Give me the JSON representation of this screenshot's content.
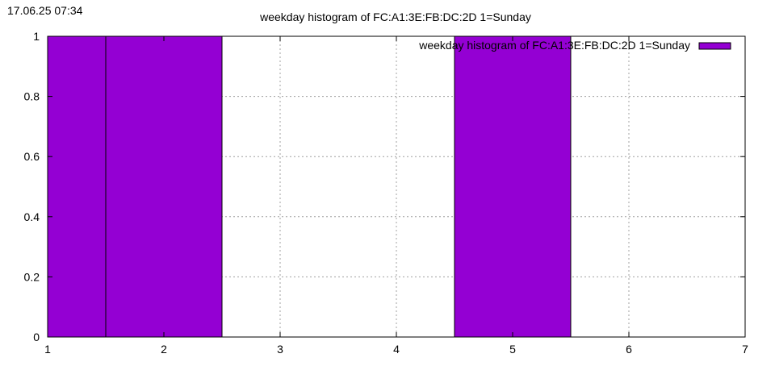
{
  "timestamp": "17.06.25 07:34",
  "colors": {
    "bar_fill": "#9400d3",
    "bar_stroke": "#000000",
    "grid": "#a0a0a0",
    "axis": "#000000"
  },
  "chart_data": {
    "type": "bar",
    "title": "weekday histogram of FC:A1:3E:FB:DC:2D 1=Sunday",
    "xlabel": "",
    "ylabel": "",
    "xlim": [
      1,
      7
    ],
    "ylim": [
      0,
      1
    ],
    "x_ticks": [
      "1",
      "2",
      "3",
      "4",
      "5",
      "6",
      "7"
    ],
    "y_ticks": [
      "0",
      "0.2",
      "0.4",
      "0.6",
      "0.8",
      "1"
    ],
    "bar_width": 1,
    "grid": true,
    "legend_position": "top-right",
    "series": [
      {
        "name": "weekday histogram of FC:A1:3E:FB:DC:2D 1=Sunday",
        "x": [
          1,
          2,
          3,
          4,
          5,
          6,
          7
        ],
        "values": [
          1,
          1,
          0,
          0,
          1,
          0,
          0
        ]
      }
    ]
  }
}
